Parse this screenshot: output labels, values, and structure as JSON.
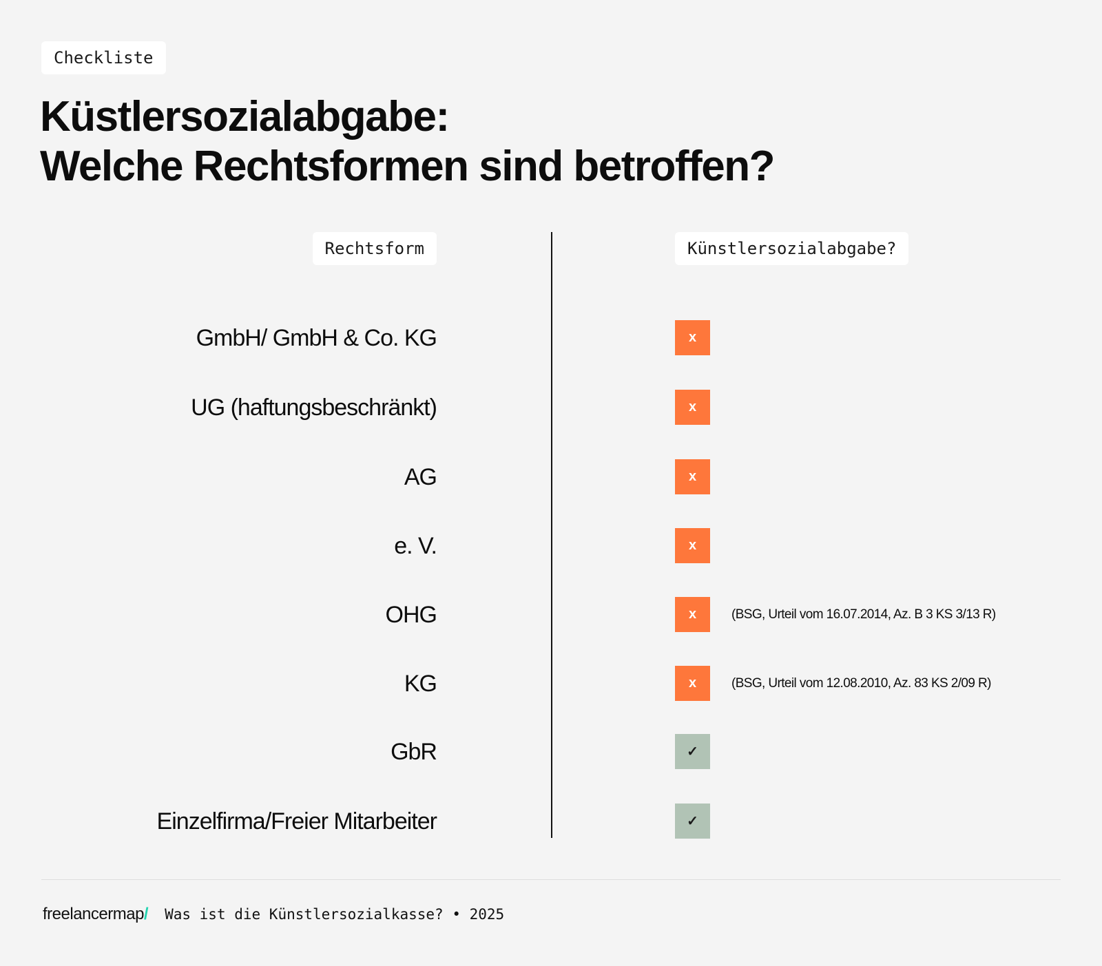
{
  "tag": "Checkliste",
  "title": {
    "line1": "Küstlersozialabgabe:",
    "line2": "Welche Rechtsformen sind betroffen?"
  },
  "table": {
    "header_left": "Rechtsform",
    "header_right": "Künstlersozialabgabe?",
    "rows": [
      {
        "label": "GmbH/ GmbH & Co. KG",
        "status": "no",
        "symbol": "x",
        "note": ""
      },
      {
        "label": "UG (haftungsbeschränkt)",
        "status": "no",
        "symbol": "x",
        "note": ""
      },
      {
        "label": "AG",
        "status": "no",
        "symbol": "x",
        "note": ""
      },
      {
        "label": "e. V.",
        "status": "no",
        "symbol": "x",
        "note": ""
      },
      {
        "label": "OHG",
        "status": "no",
        "symbol": "x",
        "note": "(BSG, Urteil vom 16.07.2014, Az. B 3 KS 3/13 R)"
      },
      {
        "label": "KG",
        "status": "no",
        "symbol": "x",
        "note": "(BSG, Urteil vom 12.08.2010, Az. 83 KS 2/09 R)"
      },
      {
        "label": "GbR",
        "status": "yes",
        "symbol": "✓",
        "note": ""
      },
      {
        "label": "Einzelfirma/Freier Mitarbeiter",
        "status": "yes",
        "symbol": "✓",
        "note": ""
      }
    ]
  },
  "colors": {
    "no": "#fe773b",
    "yes": "#b1c3b5",
    "brand_slash": "#22d3b0"
  },
  "footer": {
    "logo": "freelancermap",
    "logo_slash": "/",
    "text": "Was ist die Künstlersozialkasse? • 2025"
  }
}
